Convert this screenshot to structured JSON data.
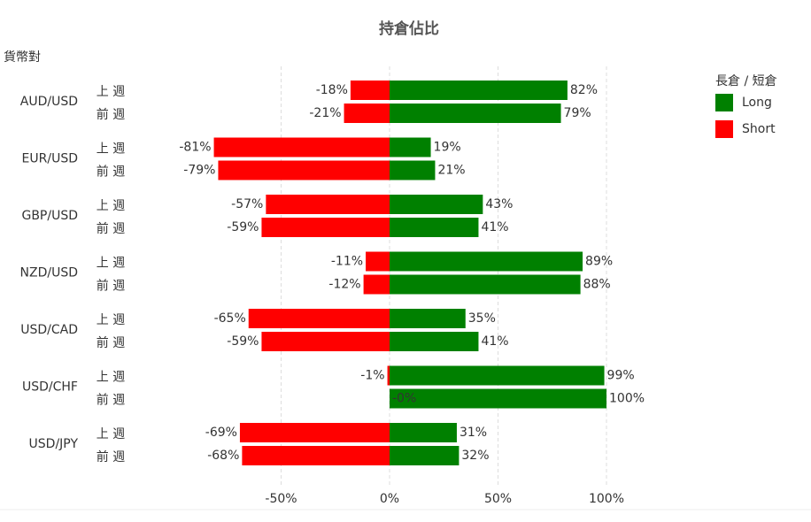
{
  "chart_data": {
    "type": "diverging-bar",
    "title": "持倉佔比",
    "y_axis_label": "貨幣對",
    "groups": [
      "AUD/USD",
      "EUR/USD",
      "GBP/USD",
      "NZD/USD",
      "USD/CAD",
      "USD/CHF",
      "USD/JPY"
    ],
    "categories": [
      "上 週",
      "前 週",
      "上 週",
      "前 週",
      "上 週",
      "前 週",
      "上 週",
      "前 週",
      "上 週",
      "前 週",
      "上 週",
      "前 週",
      "上 週",
      "前 週"
    ],
    "legend_title": "長倉 / 短倉",
    "legend_position": "top-right",
    "series": [
      {
        "name": "Long",
        "color": "#008000",
        "values": [
          82,
          79,
          19,
          21,
          43,
          41,
          89,
          88,
          35,
          41,
          99,
          100,
          31,
          32
        ],
        "value_labels": [
          "82%",
          "79%",
          "19%",
          "21%",
          "43%",
          "41%",
          "89%",
          "88%",
          "35%",
          "41%",
          "99%",
          "100%",
          "31%",
          "32%"
        ]
      },
      {
        "name": "Short",
        "color": "#ff0000",
        "values": [
          -18,
          -21,
          -81,
          -79,
          -57,
          -59,
          -11,
          -12,
          -65,
          -59,
          -1,
          0,
          -69,
          -68
        ],
        "value_labels": [
          "-18%",
          "-21%",
          "-81%",
          "-79%",
          "-57%",
          "-59%",
          "-11%",
          "-12%",
          "-65%",
          "-59%",
          "-1%",
          "-0%",
          "-69%",
          "-68%"
        ]
      }
    ],
    "xlim": [
      -100,
      100
    ],
    "xticks": [
      {
        "value": -50,
        "label": "-50%"
      },
      {
        "value": 0,
        "label": "0%"
      },
      {
        "value": 50,
        "label": "50%"
      },
      {
        "value": 100,
        "label": "100%"
      }
    ],
    "grid": true
  }
}
